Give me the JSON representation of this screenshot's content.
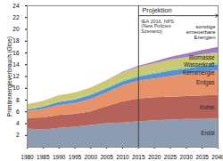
{
  "chart_data": {
    "type": "area",
    "stacked": true,
    "grid": false,
    "y_label": "Primärenergieverbrauch (Gtoe)",
    "x": [
      1980,
      1985,
      1990,
      1995,
      2000,
      2005,
      2010,
      2015,
      2020,
      2025,
      2030,
      2035,
      2040
    ],
    "xlim": [
      1980,
      2040
    ],
    "xticks": [
      1980,
      1985,
      1990,
      1995,
      2000,
      2005,
      2010,
      2015,
      2020,
      2025,
      2030,
      2035,
      2040
    ],
    "ylim": [
      0,
      24
    ],
    "yticks": [
      2,
      4,
      6,
      8,
      10,
      12,
      14,
      16,
      18,
      20,
      22,
      24
    ],
    "series": [
      {
        "name": "Erdöl",
        "color": "#8e9cb2",
        "values": [
          3.1,
          2.9,
          3.2,
          3.4,
          3.7,
          4.0,
          4.1,
          4.3,
          4.5,
          4.6,
          4.7,
          4.7,
          4.8
        ]
      },
      {
        "name": "Kohle",
        "color": "#b5625a",
        "values": [
          1.8,
          2.1,
          2.2,
          2.2,
          2.3,
          2.9,
          3.6,
          3.9,
          3.9,
          3.9,
          3.9,
          4.0,
          4.0
        ]
      },
      {
        "name": "Erdgas",
        "color": "#e8926a",
        "values": [
          1.2,
          1.4,
          1.7,
          1.8,
          2.1,
          2.3,
          2.7,
          3.0,
          3.2,
          3.5,
          3.8,
          4.0,
          4.2
        ]
      },
      {
        "name": "Kernenergie",
        "color": "#5b8fd0",
        "values": [
          0.2,
          0.4,
          0.5,
          0.6,
          0.7,
          0.7,
          0.7,
          0.7,
          0.8,
          0.9,
          0.9,
          1.0,
          1.0
        ]
      },
      {
        "name": "Wasserkraft",
        "color": "#9fcf8f",
        "values": [
          0.15,
          0.17,
          0.18,
          0.2,
          0.22,
          0.25,
          0.3,
          0.33,
          0.36,
          0.38,
          0.4,
          0.43,
          0.45
        ]
      },
      {
        "name": "Biomasse",
        "color": "#cdc872",
        "values": [
          0.75,
          0.8,
          0.9,
          1.0,
          1.0,
          1.1,
          1.2,
          1.3,
          1.4,
          1.5,
          1.5,
          1.55,
          1.6
        ]
      },
      {
        "name": "sonstige erneuerbare Energien",
        "color": "#a27cc0",
        "values": [
          0.01,
          0.01,
          0.02,
          0.02,
          0.03,
          0.05,
          0.1,
          0.2,
          0.3,
          0.45,
          0.6,
          0.75,
          0.9
        ]
      }
    ],
    "annotations": [
      {
        "x": 2015,
        "text": "Projektion"
      },
      {
        "x": 2015,
        "text": "IEA 2016, NPS (New Policies Szenario)"
      }
    ]
  }
}
